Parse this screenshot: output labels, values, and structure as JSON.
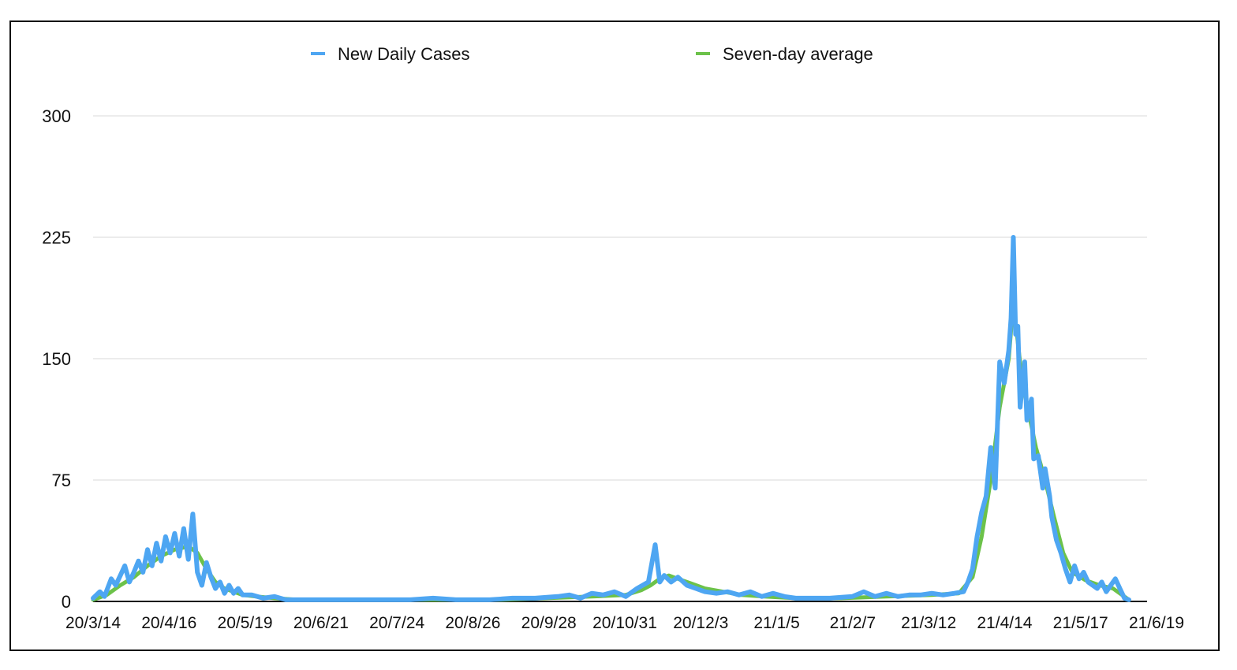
{
  "chart_data": {
    "type": "line",
    "title": "",
    "xlabel": "",
    "ylabel": "",
    "ylim": [
      0,
      300
    ],
    "yticks": [
      0,
      75,
      150,
      225,
      300
    ],
    "xticks": [
      "20/3/14",
      "20/4/16",
      "20/5/19",
      "20/6/21",
      "20/7/24",
      "20/8/26",
      "20/9/28",
      "20/10/31",
      "20/12/3",
      "21/1/5",
      "21/2/7",
      "21/3/12",
      "21/4/14",
      "21/5/17",
      "21/6/19"
    ],
    "xrange_days": [
      0,
      465
    ],
    "grid": true,
    "legend_position": "top",
    "series": [
      {
        "name": "New Daily Cases",
        "color": "#4ea6f2",
        "points": [
          [
            0,
            2
          ],
          [
            3,
            6
          ],
          [
            5,
            3
          ],
          [
            8,
            14
          ],
          [
            10,
            10
          ],
          [
            12,
            16
          ],
          [
            14,
            22
          ],
          [
            16,
            12
          ],
          [
            18,
            18
          ],
          [
            20,
            25
          ],
          [
            22,
            18
          ],
          [
            24,
            32
          ],
          [
            26,
            22
          ],
          [
            28,
            36
          ],
          [
            30,
            25
          ],
          [
            32,
            40
          ],
          [
            34,
            30
          ],
          [
            36,
            42
          ],
          [
            38,
            28
          ],
          [
            40,
            45
          ],
          [
            42,
            26
          ],
          [
            44,
            54
          ],
          [
            46,
            18
          ],
          [
            48,
            10
          ],
          [
            50,
            24
          ],
          [
            52,
            15
          ],
          [
            54,
            8
          ],
          [
            56,
            12
          ],
          [
            58,
            5
          ],
          [
            60,
            10
          ],
          [
            62,
            5
          ],
          [
            64,
            8
          ],
          [
            66,
            4
          ],
          [
            70,
            4
          ],
          [
            75,
            2
          ],
          [
            80,
            3
          ],
          [
            85,
            1
          ],
          [
            95,
            1
          ],
          [
            110,
            1
          ],
          [
            125,
            1
          ],
          [
            140,
            1
          ],
          [
            150,
            2
          ],
          [
            160,
            1
          ],
          [
            175,
            1
          ],
          [
            185,
            2
          ],
          [
            195,
            2
          ],
          [
            205,
            3
          ],
          [
            210,
            4
          ],
          [
            215,
            2
          ],
          [
            220,
            5
          ],
          [
            225,
            4
          ],
          [
            230,
            6
          ],
          [
            235,
            3
          ],
          [
            240,
            8
          ],
          [
            245,
            12
          ],
          [
            248,
            35
          ],
          [
            250,
            12
          ],
          [
            252,
            16
          ],
          [
            255,
            12
          ],
          [
            258,
            15
          ],
          [
            262,
            10
          ],
          [
            266,
            8
          ],
          [
            270,
            6
          ],
          [
            275,
            5
          ],
          [
            280,
            6
          ],
          [
            285,
            4
          ],
          [
            290,
            6
          ],
          [
            295,
            3
          ],
          [
            300,
            5
          ],
          [
            305,
            3
          ],
          [
            310,
            2
          ],
          [
            315,
            2
          ],
          [
            325,
            2
          ],
          [
            335,
            3
          ],
          [
            340,
            6
          ],
          [
            345,
            3
          ],
          [
            350,
            5
          ],
          [
            355,
            3
          ],
          [
            360,
            4
          ],
          [
            365,
            4
          ],
          [
            370,
            5
          ],
          [
            375,
            4
          ],
          [
            380,
            5
          ],
          [
            384,
            6
          ],
          [
            386,
            12
          ],
          [
            388,
            20
          ],
          [
            390,
            40
          ],
          [
            392,
            55
          ],
          [
            394,
            65
          ],
          [
            396,
            95
          ],
          [
            398,
            70
          ],
          [
            400,
            148
          ],
          [
            402,
            135
          ],
          [
            404,
            155
          ],
          [
            405,
            175
          ],
          [
            406,
            225
          ],
          [
            407,
            165
          ],
          [
            408,
            170
          ],
          [
            409,
            120
          ],
          [
            411,
            148
          ],
          [
            412,
            112
          ],
          [
            414,
            125
          ],
          [
            415,
            88
          ],
          [
            417,
            90
          ],
          [
            419,
            70
          ],
          [
            420,
            82
          ],
          [
            422,
            65
          ],
          [
            423,
            52
          ],
          [
            425,
            38
          ],
          [
            427,
            30
          ],
          [
            429,
            20
          ],
          [
            431,
            12
          ],
          [
            433,
            22
          ],
          [
            435,
            14
          ],
          [
            437,
            18
          ],
          [
            439,
            12
          ],
          [
            441,
            10
          ],
          [
            443,
            8
          ],
          [
            445,
            12
          ],
          [
            447,
            6
          ],
          [
            449,
            10
          ],
          [
            451,
            14
          ],
          [
            453,
            8
          ],
          [
            455,
            2
          ],
          [
            457,
            1
          ]
        ]
      },
      {
        "name": "Seven-day average",
        "color": "#6cc24a",
        "points": [
          [
            0,
            1
          ],
          [
            6,
            4
          ],
          [
            12,
            10
          ],
          [
            18,
            15
          ],
          [
            24,
            22
          ],
          [
            30,
            28
          ],
          [
            36,
            32
          ],
          [
            42,
            34
          ],
          [
            46,
            30
          ],
          [
            50,
            20
          ],
          [
            54,
            12
          ],
          [
            58,
            8
          ],
          [
            62,
            6
          ],
          [
            66,
            4
          ],
          [
            72,
            3
          ],
          [
            80,
            2
          ],
          [
            90,
            1
          ],
          [
            120,
            1
          ],
          [
            180,
            1
          ],
          [
            220,
            3
          ],
          [
            235,
            4
          ],
          [
            242,
            7
          ],
          [
            246,
            10
          ],
          [
            250,
            14
          ],
          [
            254,
            16
          ],
          [
            258,
            14
          ],
          [
            264,
            11
          ],
          [
            270,
            8
          ],
          [
            278,
            6
          ],
          [
            286,
            4
          ],
          [
            296,
            3
          ],
          [
            310,
            2
          ],
          [
            330,
            2
          ],
          [
            350,
            3
          ],
          [
            370,
            4
          ],
          [
            382,
            5
          ],
          [
            388,
            15
          ],
          [
            392,
            40
          ],
          [
            396,
            75
          ],
          [
            400,
            120
          ],
          [
            404,
            150
          ],
          [
            406,
            185
          ],
          [
            408,
            160
          ],
          [
            410,
            135
          ],
          [
            413,
            115
          ],
          [
            416,
            95
          ],
          [
            420,
            75
          ],
          [
            424,
            52
          ],
          [
            428,
            30
          ],
          [
            432,
            18
          ],
          [
            438,
            13
          ],
          [
            444,
            10
          ],
          [
            450,
            8
          ],
          [
            454,
            4
          ],
          [
            457,
            1
          ]
        ]
      }
    ]
  }
}
